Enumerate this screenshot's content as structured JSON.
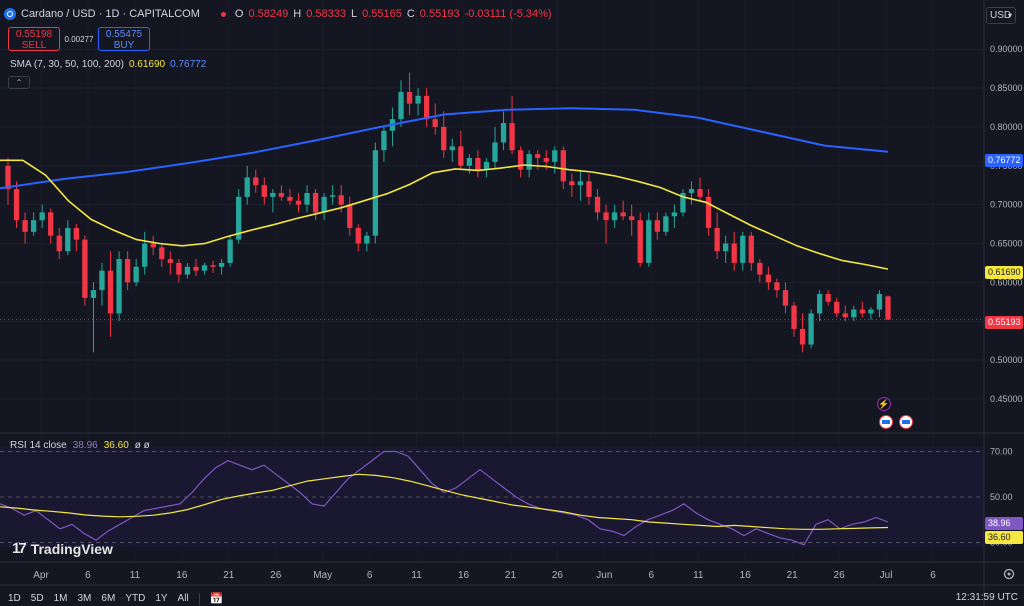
{
  "header": {
    "symbol_title": "Cardano / USD · 1D · CAPITALCOM",
    "ohlc": {
      "o_label": "O",
      "o": "0.58249",
      "h_label": "H",
      "h": "0.58333",
      "l_label": "L",
      "l": "0.55165",
      "c_label": "C",
      "c": "0.55193",
      "change": "-0.03111 (-5.34%)"
    }
  },
  "trade": {
    "sell_price": "0.55198",
    "sell_label": "SELL",
    "spread": "0.00277",
    "buy_price": "0.55475",
    "buy_label": "BUY"
  },
  "sma_legend": {
    "label": "SMA (7, 30, 50, 100, 200)",
    "value_50": "0.61690",
    "value_200": "0.76772"
  },
  "currency": "USD",
  "rsi_legend": {
    "label": "RSI 14 close",
    "rsi": "38.96",
    "ma": "36.60",
    "extra": "ø ø"
  },
  "logo_text": "TradingView",
  "logo_mark": "17",
  "ranges": [
    "1D",
    "5D",
    "1M",
    "3M",
    "6M",
    "YTD",
    "1Y",
    "All"
  ],
  "clock": "12:31:59 UTC",
  "price_tags": {
    "sma200": "0.76772",
    "sma50": "0.61690",
    "close": "0.55193",
    "rsi": "38.96",
    "rsi_ma": "36.60"
  },
  "colors": {
    "up": "#26a69a",
    "down": "#f23645",
    "sma50": "#f5e642",
    "sma200": "#2962ff",
    "rsi": "#7e57c2",
    "background": "#141722"
  },
  "icons": {
    "lightning": "⚡",
    "calendar": "📅"
  },
  "chart_data": [
    {
      "type": "candlestick",
      "title": "Cardano / USD · 1D · CAPITALCOM",
      "y_ticks": [
        "0.90000",
        "0.85000",
        "0.80000",
        "0.75000",
        "0.70000",
        "0.65000",
        "0.60000",
        "0.55000",
        "0.50000",
        "0.45000"
      ],
      "ylim": [
        0.41,
        0.935
      ],
      "x_ticks": [
        "Apr",
        "6",
        "11",
        "16",
        "21",
        "26",
        "May",
        "6",
        "11",
        "16",
        "21",
        "26",
        "Jun",
        "6",
        "11",
        "16",
        "21",
        "26",
        "Jul",
        "6"
      ],
      "candles": [
        [
          0.75,
          0.76,
          0.7,
          0.72
        ],
        [
          0.72,
          0.73,
          0.67,
          0.68
        ],
        [
          0.68,
          0.69,
          0.65,
          0.665
        ],
        [
          0.665,
          0.69,
          0.66,
          0.68
        ],
        [
          0.68,
          0.7,
          0.67,
          0.69
        ],
        [
          0.69,
          0.695,
          0.65,
          0.66
        ],
        [
          0.66,
          0.67,
          0.63,
          0.64
        ],
        [
          0.64,
          0.68,
          0.635,
          0.67
        ],
        [
          0.67,
          0.675,
          0.64,
          0.655
        ],
        [
          0.655,
          0.66,
          0.57,
          0.58
        ],
        [
          0.58,
          0.6,
          0.51,
          0.59
        ],
        [
          0.59,
          0.625,
          0.57,
          0.615
        ],
        [
          0.615,
          0.64,
          0.53,
          0.56
        ],
        [
          0.56,
          0.64,
          0.55,
          0.63
        ],
        [
          0.63,
          0.64,
          0.59,
          0.6
        ],
        [
          0.6,
          0.63,
          0.595,
          0.62
        ],
        [
          0.62,
          0.665,
          0.61,
          0.65
        ],
        [
          0.65,
          0.66,
          0.635,
          0.645
        ],
        [
          0.645,
          0.65,
          0.62,
          0.63
        ],
        [
          0.63,
          0.64,
          0.61,
          0.625
        ],
        [
          0.625,
          0.63,
          0.6,
          0.61
        ],
        [
          0.61,
          0.625,
          0.605,
          0.62
        ],
        [
          0.62,
          0.63,
          0.608,
          0.615
        ],
        [
          0.615,
          0.625,
          0.61,
          0.622
        ],
        [
          0.622,
          0.628,
          0.612,
          0.62
        ],
        [
          0.62,
          0.63,
          0.61,
          0.625
        ],
        [
          0.625,
          0.66,
          0.62,
          0.655
        ],
        [
          0.655,
          0.72,
          0.65,
          0.71
        ],
        [
          0.71,
          0.75,
          0.7,
          0.735
        ],
        [
          0.735,
          0.745,
          0.715,
          0.725
        ],
        [
          0.725,
          0.735,
          0.7,
          0.71
        ],
        [
          0.71,
          0.72,
          0.69,
          0.715
        ],
        [
          0.715,
          0.725,
          0.705,
          0.71
        ],
        [
          0.71,
          0.72,
          0.7,
          0.705
        ],
        [
          0.705,
          0.715,
          0.69,
          0.7
        ],
        [
          0.7,
          0.725,
          0.69,
          0.715
        ],
        [
          0.715,
          0.72,
          0.68,
          0.69
        ],
        [
          0.69,
          0.715,
          0.68,
          0.71
        ],
        [
          0.71,
          0.725,
          0.7,
          0.712
        ],
        [
          0.712,
          0.725,
          0.69,
          0.7
        ],
        [
          0.7,
          0.71,
          0.66,
          0.67
        ],
        [
          0.67,
          0.675,
          0.64,
          0.65
        ],
        [
          0.65,
          0.665,
          0.64,
          0.66
        ],
        [
          0.66,
          0.78,
          0.65,
          0.77
        ],
        [
          0.77,
          0.8,
          0.755,
          0.795
        ],
        [
          0.795,
          0.825,
          0.775,
          0.81
        ],
        [
          0.81,
          0.86,
          0.8,
          0.845
        ],
        [
          0.845,
          0.87,
          0.815,
          0.83
        ],
        [
          0.83,
          0.85,
          0.815,
          0.84
        ],
        [
          0.84,
          0.85,
          0.8,
          0.81
        ],
        [
          0.81,
          0.83,
          0.79,
          0.8
        ],
        [
          0.8,
          0.82,
          0.76,
          0.77
        ],
        [
          0.77,
          0.785,
          0.755,
          0.775
        ],
        [
          0.775,
          0.795,
          0.745,
          0.75
        ],
        [
          0.75,
          0.765,
          0.74,
          0.76
        ],
        [
          0.76,
          0.77,
          0.735,
          0.745
        ],
        [
          0.745,
          0.76,
          0.735,
          0.755
        ],
        [
          0.755,
          0.8,
          0.745,
          0.78
        ],
        [
          0.78,
          0.82,
          0.77,
          0.805
        ],
        [
          0.805,
          0.84,
          0.765,
          0.77
        ],
        [
          0.77,
          0.775,
          0.735,
          0.745
        ],
        [
          0.745,
          0.77,
          0.735,
          0.765
        ],
        [
          0.765,
          0.77,
          0.745,
          0.76
        ],
        [
          0.76,
          0.77,
          0.745,
          0.755
        ],
        [
          0.755,
          0.775,
          0.74,
          0.77
        ],
        [
          0.77,
          0.775,
          0.72,
          0.73
        ],
        [
          0.73,
          0.74,
          0.71,
          0.725
        ],
        [
          0.725,
          0.745,
          0.705,
          0.73
        ],
        [
          0.73,
          0.74,
          0.7,
          0.71
        ],
        [
          0.71,
          0.72,
          0.68,
          0.69
        ],
        [
          0.69,
          0.7,
          0.65,
          0.68
        ],
        [
          0.68,
          0.7,
          0.67,
          0.69
        ],
        [
          0.69,
          0.705,
          0.68,
          0.685
        ],
        [
          0.685,
          0.7,
          0.66,
          0.68
        ],
        [
          0.68,
          0.69,
          0.62,
          0.625
        ],
        [
          0.625,
          0.69,
          0.62,
          0.68
        ],
        [
          0.68,
          0.69,
          0.655,
          0.665
        ],
        [
          0.665,
          0.69,
          0.66,
          0.685
        ],
        [
          0.685,
          0.7,
          0.67,
          0.69
        ],
        [
          0.69,
          0.72,
          0.685,
          0.715
        ],
        [
          0.715,
          0.73,
          0.7,
          0.72
        ],
        [
          0.72,
          0.735,
          0.705,
          0.71
        ],
        [
          0.71,
          0.72,
          0.66,
          0.67
        ],
        [
          0.67,
          0.69,
          0.63,
          0.64
        ],
        [
          0.64,
          0.66,
          0.625,
          0.65
        ],
        [
          0.65,
          0.665,
          0.615,
          0.625
        ],
        [
          0.625,
          0.665,
          0.615,
          0.66
        ],
        [
          0.66,
          0.665,
          0.615,
          0.625
        ],
        [
          0.625,
          0.63,
          0.6,
          0.61
        ],
        [
          0.61,
          0.62,
          0.59,
          0.6
        ],
        [
          0.6,
          0.605,
          0.58,
          0.59
        ],
        [
          0.59,
          0.6,
          0.56,
          0.57
        ],
        [
          0.57,
          0.575,
          0.53,
          0.54
        ],
        [
          0.54,
          0.56,
          0.51,
          0.52
        ],
        [
          0.52,
          0.565,
          0.515,
          0.56
        ],
        [
          0.56,
          0.59,
          0.55,
          0.585
        ],
        [
          0.585,
          0.59,
          0.57,
          0.575
        ],
        [
          0.575,
          0.58,
          0.555,
          0.56
        ],
        [
          0.56,
          0.57,
          0.55,
          0.555
        ],
        [
          0.555,
          0.57,
          0.55,
          0.565
        ],
        [
          0.565,
          0.575,
          0.555,
          0.56
        ],
        [
          0.56,
          0.568,
          0.552,
          0.565
        ],
        [
          0.565,
          0.59,
          0.555,
          0.585
        ],
        [
          0.582,
          0.583,
          0.552,
          0.552
        ]
      ],
      "sma50": {
        "name": "SMA 50",
        "values": [
          0.757,
          0.757,
          0.738,
          0.705,
          0.681,
          0.667,
          0.655,
          0.65,
          0.647,
          0.65,
          0.659,
          0.667,
          0.674,
          0.682,
          0.689,
          0.696,
          0.705,
          0.714,
          0.726,
          0.741,
          0.746,
          0.744,
          0.747,
          0.751,
          0.749,
          0.745,
          0.742,
          0.737,
          0.73,
          0.722,
          0.71,
          0.703,
          0.688,
          0.673,
          0.66,
          0.647,
          0.637,
          0.628,
          0.623,
          0.617
        ]
      },
      "sma200": {
        "name": "SMA 200",
        "values": [
          0.721,
          0.733,
          0.742,
          0.754,
          0.767,
          0.783,
          0.8,
          0.816,
          0.822,
          0.824,
          0.822,
          0.812,
          0.794,
          0.776,
          0.768
        ]
      }
    },
    {
      "type": "line",
      "title": "RSI 14 close",
      "y_ticks": [
        "70.00",
        "50.00",
        "30.00"
      ],
      "ylim": [
        28,
        72
      ],
      "series": [
        {
          "name": "RSI",
          "values": [
            47,
            45,
            42,
            44,
            40,
            36,
            38,
            34,
            31,
            35,
            38,
            41,
            44,
            45,
            46,
            47,
            52,
            58,
            63,
            66,
            64,
            62,
            64,
            60,
            56,
            52,
            47,
            46,
            52,
            58,
            62,
            66,
            70,
            70,
            68,
            62,
            56,
            52,
            54,
            58,
            62,
            58,
            54,
            50,
            47,
            45,
            44,
            43,
            42,
            40,
            36,
            35,
            33,
            37,
            40,
            42,
            44,
            47,
            43,
            40,
            38,
            36,
            33,
            36,
            34,
            32,
            31,
            29,
            38,
            40,
            36,
            38,
            39,
            41,
            39
          ]
        },
        {
          "name": "RSI-based MA",
          "values": [
            45.7,
            45.1,
            44.3,
            43.7,
            43.0,
            42.1,
            41.6,
            41.3,
            41.5,
            42.0,
            43.0,
            44.5,
            46.7,
            49.0,
            50.5,
            51.8,
            53.0,
            55.0,
            57.0,
            58.0,
            59.0,
            60.0,
            59.5,
            58.5,
            57.0,
            55.0,
            53.0,
            51.0,
            49.5,
            48.0,
            46.5,
            45.5,
            44.5,
            43.5,
            42.0,
            41.0,
            40.5,
            40.0,
            39.0,
            38.5,
            38.0,
            37.5,
            37.0,
            37.5,
            37.0,
            36.5,
            36.0,
            35.8,
            35.8,
            36.0,
            36.2,
            36.4,
            36.6
          ]
        }
      ]
    }
  ]
}
